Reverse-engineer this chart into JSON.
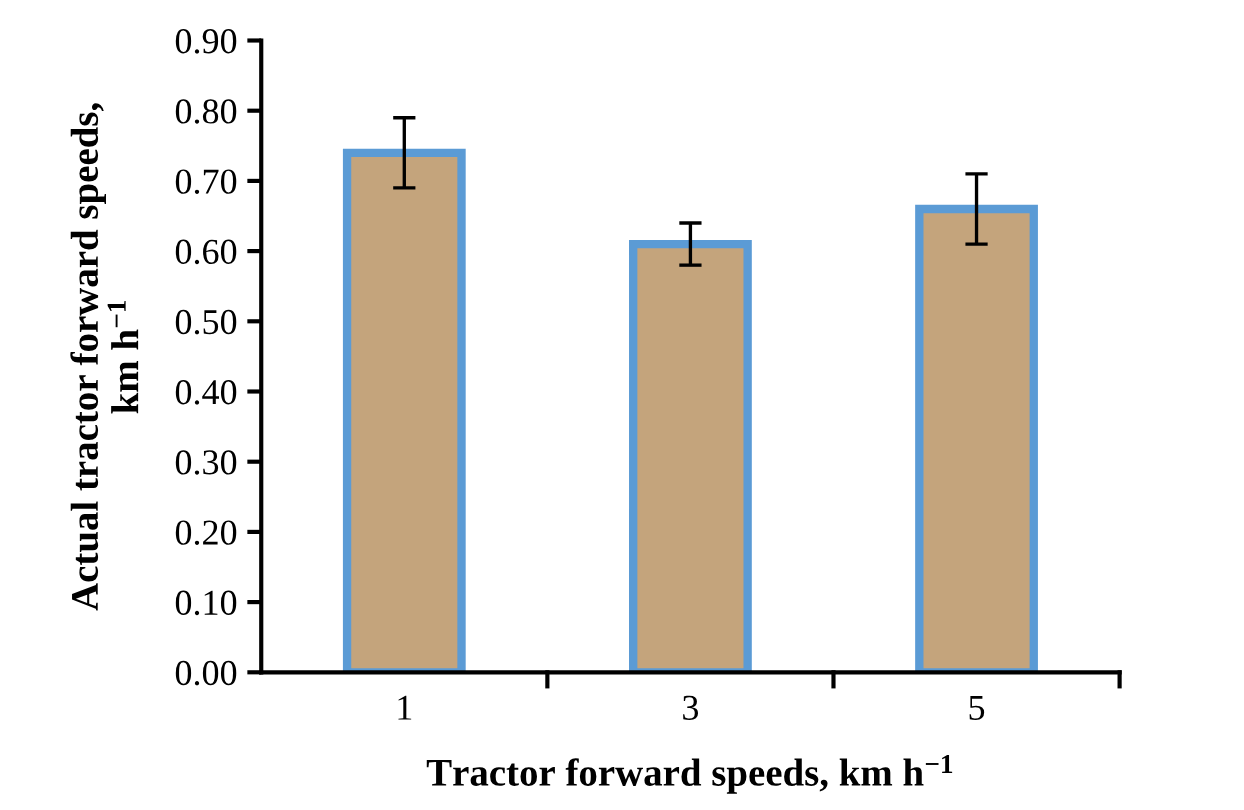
{
  "chart_data": {
    "type": "bar",
    "categories": [
      "1",
      "3",
      "5"
    ],
    "values": [
      0.74,
      0.61,
      0.66
    ],
    "errors": [
      0.05,
      0.03,
      0.05
    ],
    "color": "#c4a47c",
    "xlabel": "Tractor forward speeds, km h$^{−1}$",
    "ylabel": "Actual tractor forward speeds,\nkm h$^{−1}$",
    "ylim": [
      0,
      0.9
    ],
    "yticks": [
      {
        "value": 0,
        "label": "0.00"
      },
      {
        "value": 0.1,
        "label": "0.10"
      },
      {
        "value": 0.2,
        "label": "0.20"
      },
      {
        "value": 0.3,
        "label": "0.30"
      },
      {
        "value": 0.4,
        "label": "0.40"
      },
      {
        "value": 0.5,
        "label": "0.50"
      },
      {
        "value": 0.6,
        "label": "0.60"
      },
      {
        "value": 0.7,
        "label": "0.70"
      },
      {
        "value": 0.8,
        "label": "0.80"
      },
      {
        "value": 0.9,
        "label": "0.90"
      }
    ],
    "grid": false,
    "legend": false
  }
}
